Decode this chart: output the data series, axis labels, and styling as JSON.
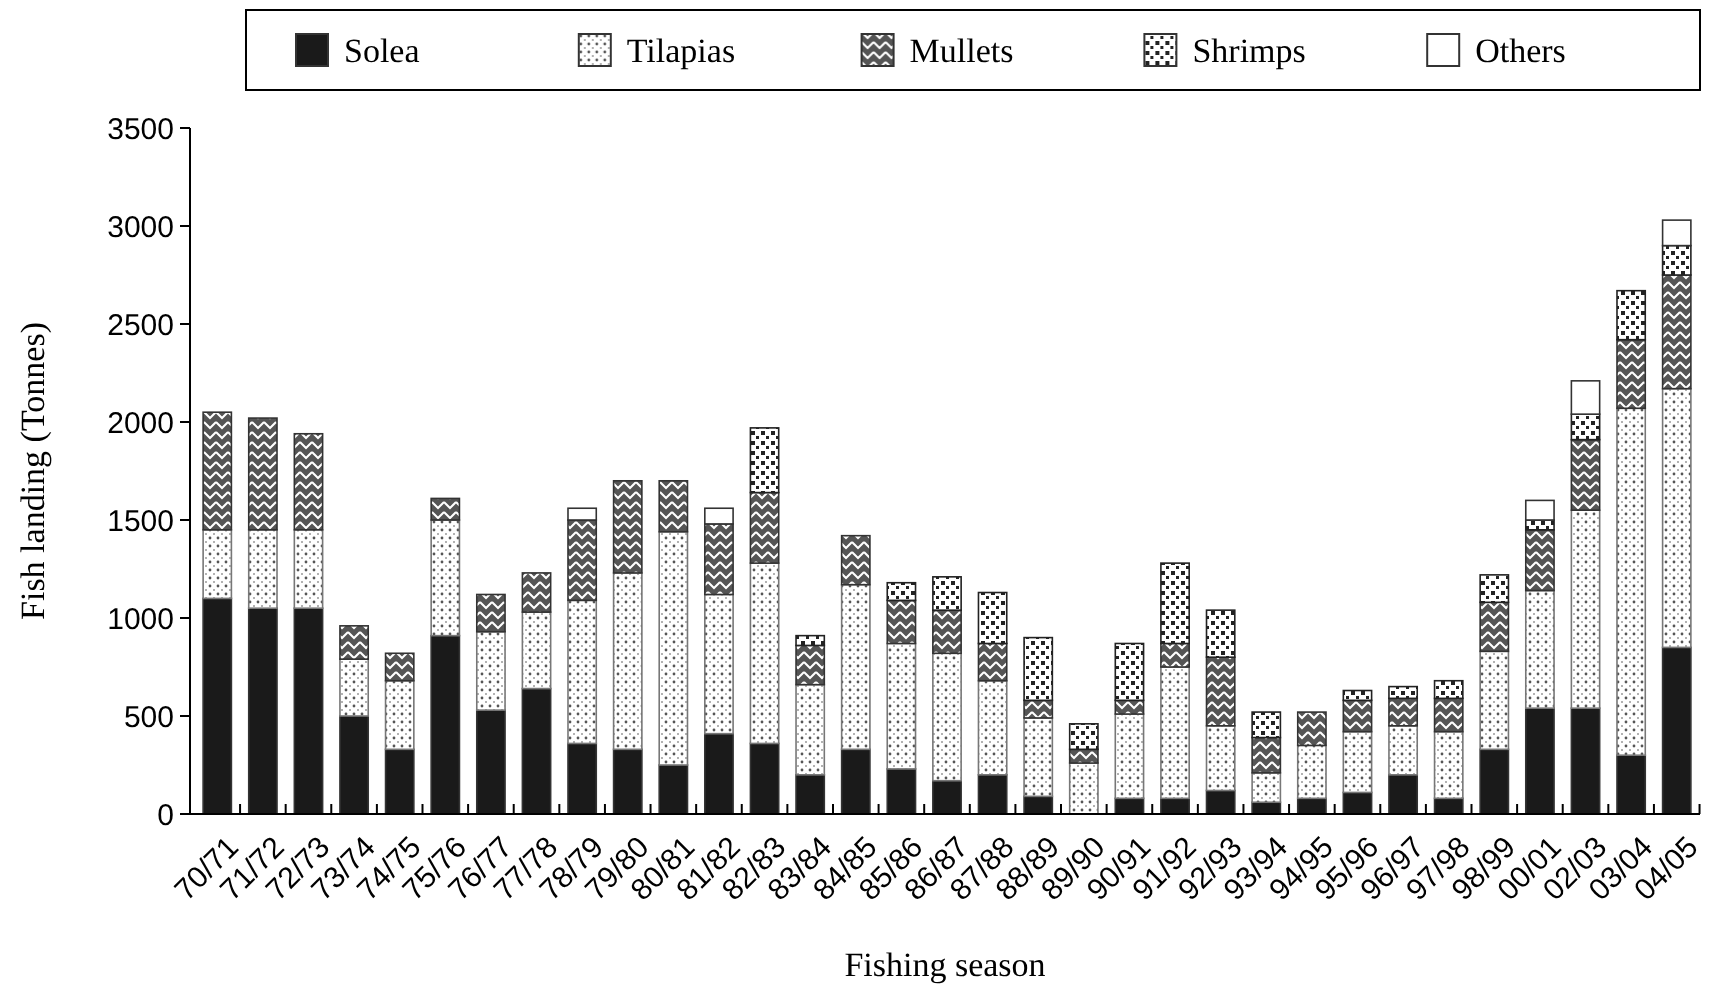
{
  "chart_data": {
    "type": "bar",
    "stacked": true,
    "xlabel": "Fishing season",
    "ylabel": "Fish landing (Tonnes)",
    "legend": "top",
    "grid": false,
    "categories": [
      "70/71",
      "71/72",
      "72/73",
      "73/74",
      "74/75",
      "75/76",
      "76/77",
      "77/78",
      "78/79",
      "79/80",
      "80/81",
      "81/82",
      "82/83",
      "83/84",
      "84/85",
      "85/86",
      "86/87",
      "87/88",
      "88/89",
      "89/90",
      "90/91",
      "91/92",
      "92/93",
      "93/94",
      "94/95",
      "95/96",
      "96/97",
      "97/98",
      "98/99",
      "00/01",
      "02/03",
      "03/04",
      "04/05"
    ],
    "ylim": [
      0,
      3500
    ],
    "yticks": [
      0,
      500,
      1000,
      1500,
      2000,
      2500,
      3000,
      3500
    ],
    "series": [
      {
        "name": "Solea",
        "color": "#1a1a1a",
        "values": [
          1100,
          1050,
          1050,
          500,
          330,
          910,
          530,
          640,
          360,
          330,
          250,
          410,
          360,
          200,
          330,
          230,
          170,
          200,
          90,
          0,
          80,
          80,
          120,
          60,
          80,
          110,
          200,
          80,
          330,
          540,
          540,
          300,
          850
        ]
      },
      {
        "name": "Tilapias",
        "color": "#777777",
        "values": [
          350,
          400,
          400,
          290,
          350,
          590,
          400,
          390,
          730,
          900,
          1190,
          710,
          920,
          460,
          840,
          640,
          650,
          480,
          400,
          260,
          430,
          670,
          330,
          150,
          270,
          310,
          250,
          340,
          500,
          600,
          1010,
          1770,
          1320
        ]
      },
      {
        "name": "Mullets",
        "color": "#333333",
        "values": [
          600,
          570,
          490,
          170,
          140,
          110,
          190,
          200,
          410,
          470,
          260,
          360,
          360,
          200,
          250,
          220,
          220,
          190,
          90,
          70,
          70,
          120,
          350,
          180,
          170,
          160,
          140,
          170,
          250,
          310,
          360,
          350,
          580
        ]
      },
      {
        "name": "Shrimps",
        "color": "#222222",
        "values": [
          0,
          0,
          0,
          0,
          0,
          0,
          0,
          0,
          0,
          0,
          0,
          0,
          330,
          50,
          0,
          90,
          170,
          260,
          320,
          130,
          290,
          410,
          240,
          130,
          0,
          50,
          60,
          90,
          140,
          50,
          130,
          250,
          150
        ]
      },
      {
        "name": "Others",
        "color": "#ffffff",
        "values": [
          0,
          0,
          0,
          0,
          0,
          0,
          0,
          0,
          60,
          0,
          0,
          80,
          0,
          0,
          0,
          0,
          0,
          0,
          0,
          0,
          0,
          0,
          0,
          0,
          0,
          0,
          0,
          0,
          0,
          100,
          170,
          0,
          130
        ]
      }
    ]
  }
}
